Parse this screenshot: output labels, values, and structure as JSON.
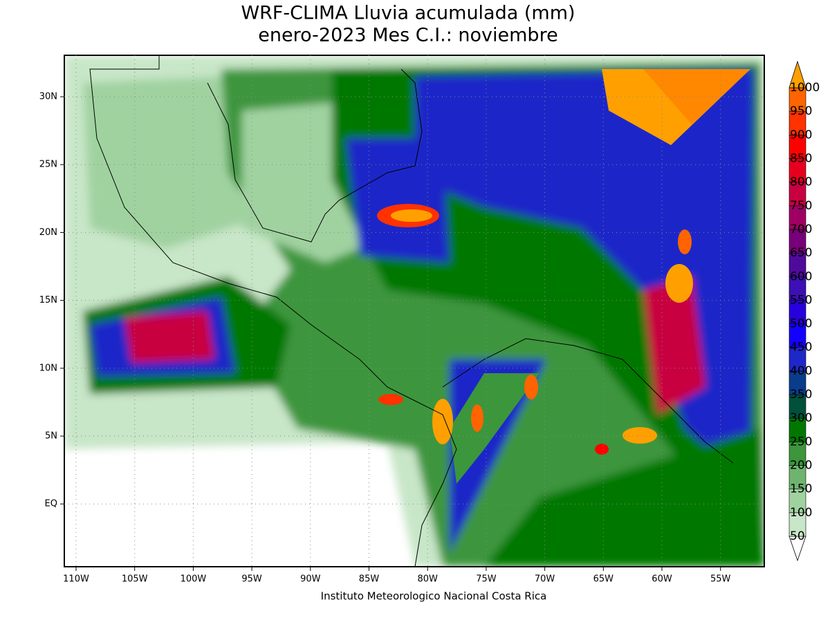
{
  "title": [
    "WRF-CLIMA Lluvia acumulada (mm)",
    "enero-2023 Mes C.I.: noviembre"
  ],
  "x_labels": [
    "110W",
    "105W",
    "100W",
    "95W",
    "90W",
    "85W",
    "80W",
    "75W",
    "70W",
    "65W",
    "60W",
    "55W"
  ],
  "y_labels": [
    "30N",
    "25N",
    "20N",
    "15N",
    "10N",
    "5N",
    "EQ"
  ],
  "colorbar": {
    "levels": [
      50,
      100,
      150,
      200,
      250,
      300,
      350,
      400,
      450,
      500,
      550,
      600,
      650,
      700,
      750,
      800,
      850,
      900,
      950,
      1000
    ],
    "colors": [
      "#ffffff",
      "#c8e6c8",
      "#a0d2a0",
      "#6eb46e",
      "#3c963c",
      "#007800",
      "#00503c",
      "#0a3c8c",
      "#1e28c8",
      "#1400ff",
      "#2800dc",
      "#3c10b4",
      "#500a9b",
      "#780078",
      "#a00064",
      "#c80041",
      "#e6001e",
      "#ff0000",
      "#ff3200",
      "#ff6400",
      "#ffa000"
    ]
  },
  "credit": "Instituto Meteorologico Nacional Costa Rica"
}
